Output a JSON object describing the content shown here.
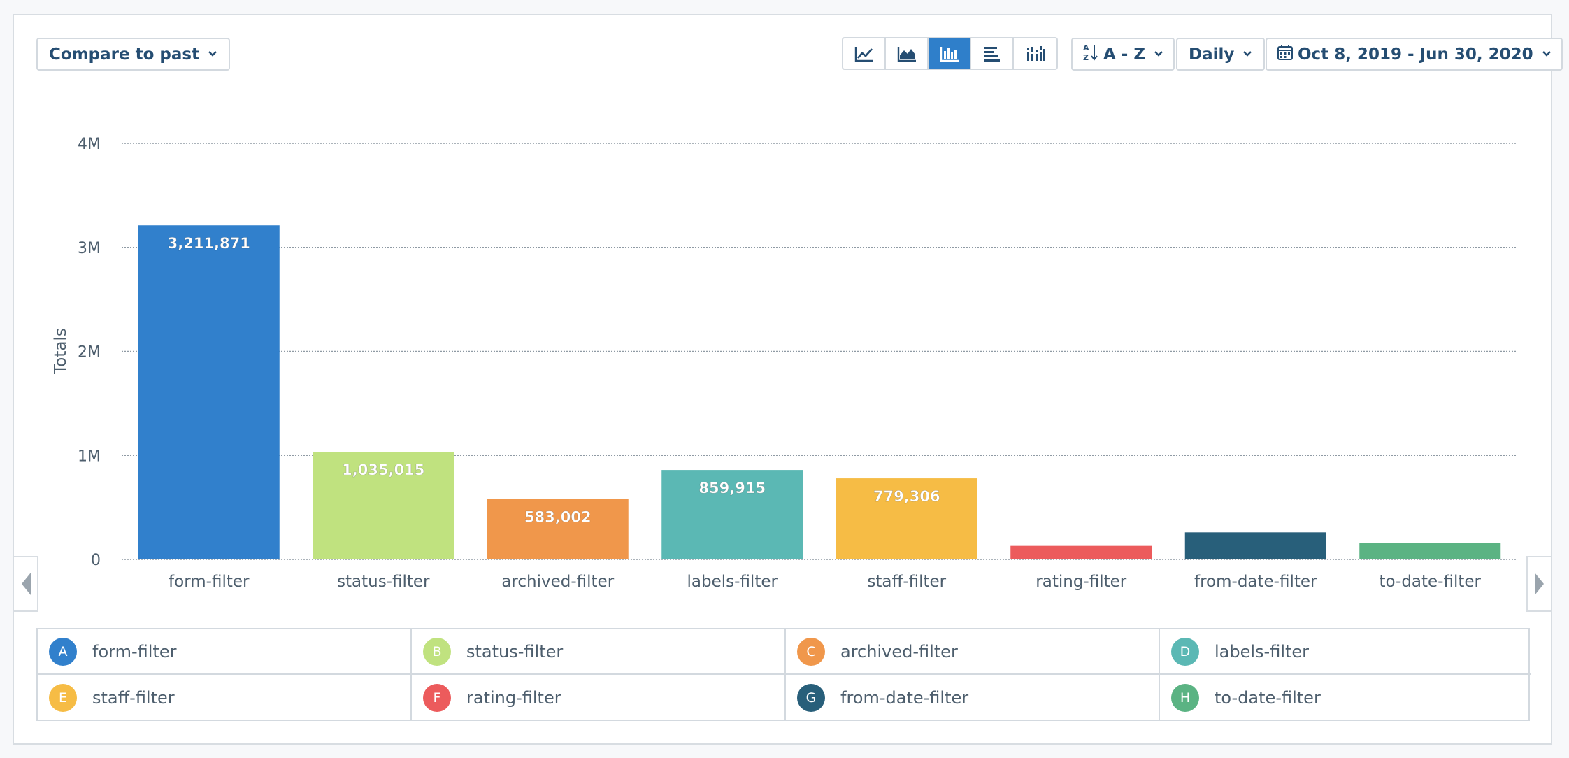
{
  "toolbar": {
    "compare_label": "Compare to past",
    "sort_label": "A - Z",
    "interval_label": "Daily",
    "date_range_label": "Oct 8, 2019 - Jun 30, 2020",
    "chart_type_icons": [
      "line-chart-icon",
      "area-chart-icon",
      "bar-chart-icon",
      "horizontal-bar-icon",
      "stacked-bar-icon"
    ],
    "active_chart_type": "bar-chart-icon"
  },
  "chart_data": {
    "type": "bar",
    "categories": [
      "form-filter",
      "status-filter",
      "archived-filter",
      "labels-filter",
      "staff-filter",
      "rating-filter",
      "from-date-filter",
      "to-date-filter"
    ],
    "values": [
      3211871,
      1035015,
      583002,
      859915,
      779306,
      130000,
      260000,
      160000
    ],
    "data_labels": [
      "3,211,871",
      "1,035,015",
      "583,002",
      "859,915",
      "779,306",
      "",
      "",
      ""
    ],
    "colors": [
      "#3180cc",
      "#c0e27f",
      "#f0974b",
      "#5bb8b4",
      "#f6bc45",
      "#ec5b5c",
      "#285f7a",
      "#5bb383"
    ],
    "ylabel": "Totals",
    "ylim": [
      0,
      4000000
    ],
    "yticks": [
      0,
      1000000,
      2000000,
      3000000,
      4000000
    ],
    "ytick_labels": [
      "0",
      "1M",
      "2M",
      "3M",
      "4M"
    ],
    "grid": true
  },
  "legend": {
    "items": [
      {
        "letter": "A",
        "label": "form-filter",
        "color": "#3180cc"
      },
      {
        "letter": "B",
        "label": "status-filter",
        "color": "#c0e27f"
      },
      {
        "letter": "C",
        "label": "archived-filter",
        "color": "#f0974b"
      },
      {
        "letter": "D",
        "label": "labels-filter",
        "color": "#5bb8b4"
      },
      {
        "letter": "E",
        "label": "staff-filter",
        "color": "#f6bc45"
      },
      {
        "letter": "F",
        "label": "rating-filter",
        "color": "#ec5b5c"
      },
      {
        "letter": "G",
        "label": "from-date-filter",
        "color": "#285f7a"
      },
      {
        "letter": "H",
        "label": "to-date-filter",
        "color": "#5bb383"
      }
    ]
  },
  "nav": {
    "prev_icon": "chevron-left-icon",
    "next_icon": "chevron-right-icon"
  }
}
